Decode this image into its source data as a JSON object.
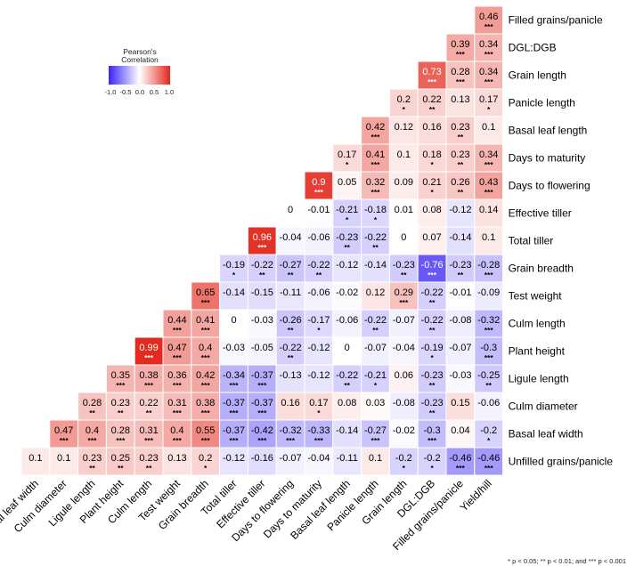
{
  "chart_data": {
    "type": "heatmap",
    "title": "",
    "legend": {
      "title_lines": [
        "Pearson's",
        "Correlation"
      ],
      "ticks": [
        "-1.0",
        "-0.5",
        "0.0",
        "0.5",
        "1.0"
      ],
      "range": [
        -1.0,
        1.0
      ],
      "colors": {
        "low": "#3a23f2",
        "mid": "#ffffff",
        "high": "#e3281c"
      },
      "placement": "top-left"
    },
    "x_labels": [
      "Basal leaf width",
      "Culm diameter",
      "Ligule length",
      "Plant height",
      "Culm length",
      "Test weight",
      "Grain breadth",
      "Total tiller",
      "Effective tiller",
      "Days to flowering",
      "Days to maturity",
      "Basal leaf length",
      "Panicle length",
      "Grain length",
      "DGL:DGB",
      "Filled grains/panicle",
      "Yield/hill"
    ],
    "y_labels": [
      "Filled grains/panicle",
      "DGL:DGB",
      "Grain length",
      "Panicle length",
      "Basal leaf length",
      "Days to maturity",
      "Days to flowering",
      "Effective tiller",
      "Total tiller",
      "Grain breadth",
      "Test weight",
      "Culm length",
      "Plant height",
      "Ligule length",
      "Culm diameter",
      "Basal leaf width",
      "Unfilled grains/panicle"
    ],
    "values": [
      [
        0.46
      ],
      [
        0.39,
        0.34
      ],
      [
        0.73,
        0.28,
        0.34
      ],
      [
        0.2,
        0.22,
        0.13,
        0.17
      ],
      [
        0.42,
        0.12,
        0.16,
        0.23,
        0.1
      ],
      [
        0.17,
        0.41,
        0.1,
        0.18,
        0.23,
        0.34
      ],
      [
        0.9,
        0.05,
        0.32,
        0.09,
        0.21,
        0.26,
        0.43
      ],
      [
        0,
        -0.01,
        -0.21,
        -0.18,
        0.01,
        0.08,
        -0.12,
        0.14
      ],
      [
        0.96,
        -0.04,
        -0.06,
        -0.23,
        -0.22,
        0,
        0.07,
        -0.14,
        0.1
      ],
      [
        -0.19,
        -0.22,
        -0.27,
        -0.22,
        -0.12,
        -0.14,
        -0.23,
        -0.76,
        -0.23,
        -0.28
      ],
      [
        0.65,
        -0.14,
        -0.15,
        -0.11,
        -0.06,
        -0.02,
        0.12,
        0.29,
        -0.22,
        -0.01,
        -0.09
      ],
      [
        0.44,
        0.41,
        0,
        -0.03,
        -0.26,
        -0.17,
        -0.06,
        -0.22,
        -0.07,
        -0.22,
        -0.08,
        -0.32
      ],
      [
        0.99,
        0.47,
        0.4,
        -0.03,
        -0.05,
        -0.22,
        -0.12,
        0,
        -0.07,
        -0.04,
        -0.19,
        -0.07,
        -0.3
      ],
      [
        0.35,
        0.38,
        0.36,
        0.42,
        -0.34,
        -0.37,
        -0.13,
        -0.12,
        -0.22,
        -0.21,
        0.06,
        -0.23,
        -0.03,
        -0.25
      ],
      [
        0.28,
        0.23,
        0.22,
        0.31,
        0.38,
        -0.37,
        -0.37,
        0.16,
        0.17,
        0.08,
        0.03,
        -0.08,
        -0.23,
        0.15,
        -0.06
      ],
      [
        0.47,
        0.4,
        0.28,
        0.31,
        0.4,
        0.55,
        -0.37,
        -0.42,
        -0.32,
        -0.33,
        -0.14,
        -0.27,
        -0.02,
        -0.3,
        0.04,
        -0.2
      ],
      [
        0.1,
        0.1,
        0.23,
        0.25,
        0.23,
        0.13,
        0.2,
        -0.12,
        -0.16,
        -0.07,
        -0.04,
        -0.11,
        0.1,
        -0.2,
        -0.2,
        -0.46,
        -0.46
      ]
    ],
    "significance": [
      [
        "***"
      ],
      [
        "***",
        "***"
      ],
      [
        "***",
        "***",
        "***"
      ],
      [
        "*",
        "**",
        "",
        "*"
      ],
      [
        "***",
        "",
        "",
        "**",
        ""
      ],
      [
        "*",
        "***",
        "",
        "*",
        "**",
        "***"
      ],
      [
        "***",
        "",
        "***",
        "",
        "*",
        "**",
        "***"
      ],
      [
        "",
        "",
        "*",
        "*",
        "",
        "",
        "",
        ""
      ],
      [
        "***",
        "",
        "",
        "**",
        "**",
        "",
        "",
        "",
        ""
      ],
      [
        "*",
        "**",
        "**",
        "**",
        "",
        "",
        "**",
        "***",
        "**",
        "***"
      ],
      [
        "***",
        "",
        "",
        "",
        "",
        "",
        "",
        "***",
        "**",
        "",
        ""
      ],
      [
        "***",
        "***",
        "",
        "",
        "**",
        "*",
        "",
        "**",
        "",
        "**",
        "",
        "***"
      ],
      [
        "***",
        "***",
        "***",
        "",
        "",
        "**",
        "",
        "",
        "",
        "",
        "*",
        "",
        "***"
      ],
      [
        "***",
        "***",
        "***",
        "***",
        "***",
        "***",
        "",
        "",
        "**",
        "*",
        "",
        "**",
        "",
        "**"
      ],
      [
        "**",
        "**",
        "**",
        "***",
        "***",
        "***",
        "***",
        "",
        "*",
        "",
        "",
        "",
        "**",
        "",
        ""
      ],
      [
        "***",
        "***",
        "***",
        "***",
        "***",
        "***",
        "***",
        "***",
        "***",
        "***",
        "",
        "***",
        "",
        "***",
        "",
        "*"
      ],
      [
        "",
        "",
        "**",
        "**",
        "**",
        "",
        "*",
        "",
        "",
        "",
        "",
        "",
        "",
        "*",
        "*",
        "***",
        "***"
      ]
    ],
    "footnote": "* p < 0.05; ** p < 0.01; and *** p < 0.001"
  }
}
